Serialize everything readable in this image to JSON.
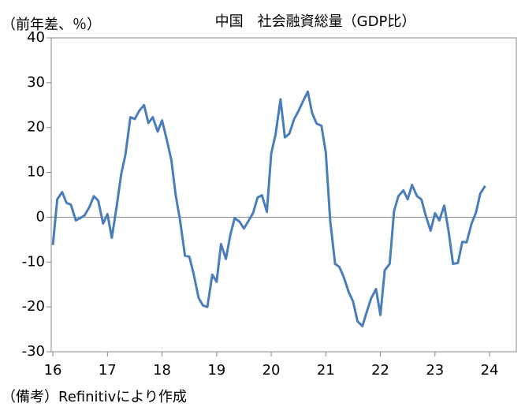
{
  "chart_data": {
    "type": "line",
    "title": "中国　社会融資総量（GDP比）",
    "y_label": "（前年差、％）",
    "note": "（備考）Refinitivにより作成",
    "x": [
      16,
      16.08,
      16.17,
      16.25,
      16.33,
      16.42,
      16.5,
      16.58,
      16.67,
      16.75,
      16.83,
      16.92,
      17,
      17.08,
      17.17,
      17.25,
      17.33,
      17.42,
      17.5,
      17.58,
      17.67,
      17.75,
      17.83,
      17.92,
      18,
      18.08,
      18.17,
      18.25,
      18.33,
      18.42,
      18.5,
      18.58,
      18.67,
      18.75,
      18.83,
      18.92,
      19,
      19.08,
      19.17,
      19.25,
      19.33,
      19.42,
      19.5,
      19.58,
      19.67,
      19.75,
      19.83,
      19.92,
      20,
      20.08,
      20.17,
      20.25,
      20.33,
      20.42,
      20.5,
      20.58,
      20.67,
      20.75,
      20.83,
      20.92,
      21,
      21.08,
      21.17,
      21.25,
      21.33,
      21.42,
      21.5,
      21.58,
      21.67,
      21.75,
      21.83,
      21.92,
      22,
      22.08,
      22.17,
      22.25,
      22.33,
      22.42,
      22.5,
      22.58,
      22.67,
      22.75,
      22.83,
      22.92,
      23,
      23.08,
      23.17,
      23.25,
      23.33,
      23.42,
      23.5,
      23.58,
      23.67,
      23.75,
      23.83,
      23.92
    ],
    "series": [
      {
        "color": "#4a7ebb",
        "values": [
          -6.2,
          4,
          5.6,
          3.2,
          2.8,
          -0.7,
          -0.2,
          0.4,
          2.3,
          4.7,
          3.7,
          -1.4,
          0.7,
          -4.6,
          2.5,
          9.5,
          14,
          22.3,
          21.9,
          23.7,
          25,
          21,
          22.3,
          19.1,
          21.6,
          17.6,
          12.8,
          4.9,
          -0.7,
          -8.6,
          -8.8,
          -12.7,
          -18,
          -19.7,
          -20,
          -12.8,
          -14.4,
          -6,
          -9.3,
          -4,
          -0.2,
          -1,
          -2.5,
          -0.9,
          1,
          4.4,
          4.9,
          1.2,
          14.2,
          18.5,
          26.3,
          17.8,
          18.6,
          21.9,
          23.7,
          25.8,
          28,
          23.2,
          20.9,
          20.4,
          14.4,
          -0.7,
          -10.4,
          -11.1,
          -13.4,
          -16.7,
          -18.8,
          -23.2,
          -24.3,
          -21.1,
          -18.1,
          -16,
          -21.8,
          -11.8,
          -10.4,
          1.4,
          4.7,
          6,
          4,
          7.2,
          4.7,
          4,
          0.4,
          -3,
          0.9,
          -0.7,
          2.6,
          -3.2,
          -10.4,
          -10.2,
          -5.5,
          -5.6,
          -1.4,
          1,
          5.3,
          7
        ]
      }
    ],
    "xlim": [
      15.97,
      24.49
    ],
    "xticks": [
      16,
      17,
      18,
      19,
      20,
      21,
      22,
      23,
      24
    ],
    "ylim": [
      -30,
      40
    ],
    "yticks": [
      -30,
      -20,
      -10,
      0,
      10,
      20,
      30,
      40
    ],
    "zero_line": true
  }
}
